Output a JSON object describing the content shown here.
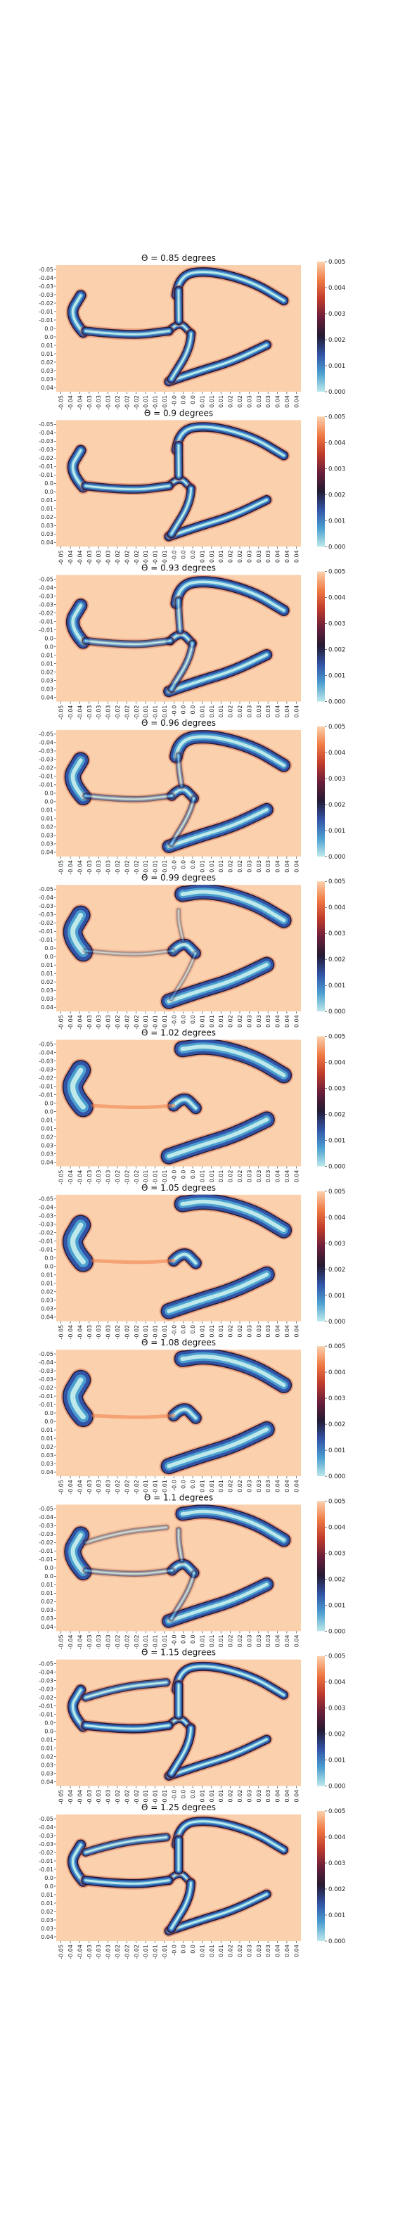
{
  "chart_data": {
    "type": "heatmap",
    "layout": "vertical stack of 11 heatmap panels, each with its own colorbar on the right",
    "colormap": "icefire",
    "colormap_stops": [
      "#bde9ea",
      "#4b9fd0",
      "#3253a6",
      "#241b32",
      "#6a1f3b",
      "#c03b2b",
      "#f07b45",
      "#fbd1ad"
    ],
    "background_color": "#fbd1ad",
    "colorbar": {
      "min": 0.0,
      "max": 0.005,
      "ticks": [
        "0.000",
        "0.001",
        "0.002",
        "0.003",
        "0.004",
        "0.005"
      ]
    },
    "y_tick_labels": [
      "-0.05",
      "-0.04",
      "-0.03",
      "-0.03",
      "-0.02",
      "-0.01",
      "-0.01",
      "0.0",
      "0.0",
      "0.01",
      "0.01",
      "0.02",
      "0.03",
      "0.03",
      "0.04"
    ],
    "x_tick_labels": [
      "-0.05",
      "-0.04",
      "-0.04",
      "-0.03",
      "-0.03",
      "-0.03",
      "-0.02",
      "-0.02",
      "-0.02",
      "-0.01",
      "-0.01",
      "-0.01",
      "-0.0",
      "0.0",
      "0.0",
      "0.01",
      "0.01",
      "0.01",
      "0.02",
      "0.02",
      "0.03",
      "0.03",
      "0.03",
      "0.04",
      "0.04",
      "0.04"
    ],
    "panels": [
      {
        "title": "Θ = 0.85 degrees",
        "theta": 0.85
      },
      {
        "title": "Θ = 0.9 degrees",
        "theta": 0.9
      },
      {
        "title": "Θ = 0.93 degrees",
        "theta": 0.93
      },
      {
        "title": "Θ = 0.96 degrees",
        "theta": 0.96
      },
      {
        "title": "Θ = 0.99 degrees",
        "theta": 0.99
      },
      {
        "title": "Θ = 1.02 degrees",
        "theta": 1.02
      },
      {
        "title": "Θ = 1.05 degrees",
        "theta": 1.05
      },
      {
        "title": "Θ = 1.08 degrees",
        "theta": 1.08
      },
      {
        "title": "Θ = 1.1 degrees",
        "theta": 1.1
      },
      {
        "title": "Θ = 1.15 degrees",
        "theta": 1.15
      },
      {
        "title": "Θ = 1.25 degrees",
        "theta": 1.25
      }
    ]
  }
}
